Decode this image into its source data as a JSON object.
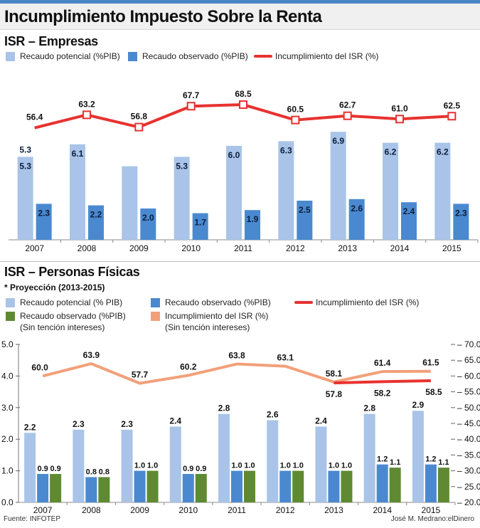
{
  "title": "Incumplimiento Impuesto Sobre la Renta",
  "colors": {
    "light_blue": "#a9c4e8",
    "dark_blue": "#4a89cf",
    "green": "#5f8a32",
    "red": "#e8322f",
    "salmon": "#f2a07a"
  },
  "footer": {
    "source": "Fuente: INFOTEP",
    "credit": "José M. Medrano:elDinero"
  },
  "chart_data": [
    {
      "type": "bar",
      "title": "ISR – Empresas",
      "categories": [
        "2007",
        "2008",
        "2009",
        "2010",
        "2011",
        "2012",
        "2013",
        "2014",
        "2015"
      ],
      "series": [
        {
          "name": "Recaudo potencial (%PIB)",
          "kind": "bar",
          "color": "#a9c4e8",
          "values": [
            5.3,
            6.1,
            4.7,
            5.3,
            6.0,
            6.3,
            6.9,
            6.2,
            6.2
          ],
          "labels": [
            "5.3",
            "6.1",
            "",
            "5.3",
            "6.0",
            "6.3",
            "6.9",
            "6.2",
            "6.2"
          ]
        },
        {
          "name": "Recaudo observado (%PIB)",
          "kind": "bar",
          "color": "#4a89cf",
          "values": [
            2.3,
            2.2,
            2.0,
            1.7,
            1.9,
            2.5,
            2.6,
            2.4,
            2.3
          ]
        },
        {
          "name": "Incumplimiento del ISR (%)",
          "kind": "line",
          "color": "#e8322f",
          "values": [
            56.4,
            63.2,
            56.8,
            67.7,
            68.5,
            60.5,
            62.7,
            61.0,
            62.5
          ]
        }
      ],
      "extra_label": "5.3"
    },
    {
      "type": "bar",
      "title": "ISR – Personas Físicas",
      "note": "* Proyección (2013-2015)",
      "categories": [
        "2007",
        "2008",
        "2009",
        "2010",
        "2011",
        "2012",
        "2013",
        "2014",
        "2015"
      ],
      "left_axis_ticks": [
        "5.0",
        "4.0",
        "3.0",
        "2.0",
        "1.0",
        "0.0"
      ],
      "right_axis_ticks": [
        "70.0",
        "65.0",
        "60.0",
        "55.0",
        "50.0",
        "45.0",
        "40.0",
        "35.0",
        "30.0",
        "25.0",
        "20.0"
      ],
      "ylim_left": [
        0,
        5
      ],
      "ylim_right": [
        20,
        70
      ],
      "series": [
        {
          "name": "Recaudo potencial (% PIB)",
          "kind": "bar",
          "color": "#a9c4e8",
          "values": [
            2.2,
            2.3,
            2.3,
            2.4,
            2.8,
            2.6,
            2.4,
            2.8,
            2.9
          ]
        },
        {
          "name": "Recaudo observado (%PIB)",
          "kind": "bar",
          "color": "#4a89cf",
          "values": [
            0.9,
            0.8,
            1.0,
            0.9,
            1.0,
            1.0,
            1.0,
            1.2,
            1.2
          ]
        },
        {
          "name": "Recaudo observado (%PIB)",
          "name2": "(Sin tención intereses)",
          "kind": "bar",
          "color": "#5f8a32",
          "values": [
            0.9,
            0.8,
            1.0,
            0.9,
            1.0,
            1.0,
            1.0,
            1.1,
            1.1
          ]
        },
        {
          "name": "Incumplimiento del ISR (%)",
          "kind": "line",
          "color": "#e8322f",
          "values": [
            null,
            null,
            null,
            null,
            null,
            null,
            57.8,
            58.2,
            58.5
          ]
        },
        {
          "name": "Incumplimiento del ISR (%)",
          "name2": "(Sin tención intereses)",
          "kind": "line",
          "color": "#f2a07a",
          "values": [
            60.0,
            63.9,
            57.7,
            60.2,
            63.8,
            63.1,
            58.1,
            61.4,
            61.5
          ]
        }
      ]
    }
  ]
}
